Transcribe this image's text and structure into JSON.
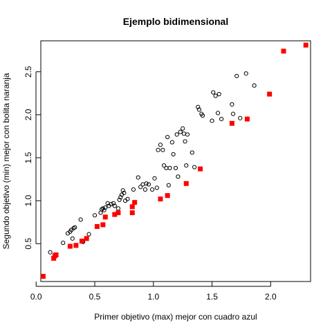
{
  "chart_data": {
    "type": "scatter",
    "title": "Ejemplo bidimensional",
    "xlabel": "Primer objetivo (max) mejor con cuadro azul",
    "ylabel": "Segundo objetivo (min) mejor con bolita naranja",
    "xlim": [
      0.04,
      2.34
    ],
    "ylim": [
      0.06,
      2.86
    ],
    "xticks": [
      "0.0",
      "0.5",
      "1.0",
      "1.5",
      "2.0"
    ],
    "yticks": [
      "0.5",
      "1.0",
      "1.5",
      "2.0",
      "2.5"
    ],
    "grid": false,
    "series": [
      {
        "marker": "open-circle",
        "color": "#000000",
        "points": [
          [
            0.12,
            0.4
          ],
          [
            0.23,
            0.51
          ],
          [
            0.27,
            0.62
          ],
          [
            0.29,
            0.64
          ],
          [
            0.3,
            0.66
          ],
          [
            0.32,
            0.68
          ],
          [
            0.33,
            0.69
          ],
          [
            0.31,
            0.56
          ],
          [
            0.38,
            0.78
          ],
          [
            0.4,
            0.52
          ],
          [
            0.45,
            0.61
          ],
          [
            0.5,
            0.83
          ],
          [
            0.55,
            0.86
          ],
          [
            0.56,
            0.9
          ],
          [
            0.57,
            0.91
          ],
          [
            0.58,
            0.89
          ],
          [
            0.59,
            0.92
          ],
          [
            0.61,
            0.97
          ],
          [
            0.62,
            0.94
          ],
          [
            0.64,
            0.96
          ],
          [
            0.66,
            0.97
          ],
          [
            0.67,
            0.94
          ],
          [
            0.7,
            0.91
          ],
          [
            0.71,
            1.01
          ],
          [
            0.72,
            1.04
          ],
          [
            0.73,
            1.07
          ],
          [
            0.74,
            1.12
          ],
          [
            0.75,
            1.09
          ],
          [
            0.76,
            1.0
          ],
          [
            0.78,
            1.02
          ],
          [
            0.83,
            1.13
          ],
          [
            0.87,
            1.27
          ],
          [
            0.89,
            1.16
          ],
          [
            0.91,
            1.19
          ],
          [
            0.93,
            1.13
          ],
          [
            0.94,
            1.2
          ],
          [
            0.96,
            1.19
          ],
          [
            0.99,
            1.13
          ],
          [
            1.01,
            1.26
          ],
          [
            1.03,
            1.15
          ],
          [
            1.04,
            1.59
          ],
          [
            1.06,
            1.65
          ],
          [
            1.08,
            1.59
          ],
          [
            1.09,
            1.41
          ],
          [
            1.11,
            1.38
          ],
          [
            1.12,
            1.74
          ],
          [
            1.13,
            1.18
          ],
          [
            1.14,
            1.38
          ],
          [
            1.16,
            1.68
          ],
          [
            1.17,
            1.54
          ],
          [
            1.19,
            1.38
          ],
          [
            1.2,
            1.77
          ],
          [
            1.21,
            1.28
          ],
          [
            1.23,
            1.8
          ],
          [
            1.25,
            1.84
          ],
          [
            1.26,
            1.78
          ],
          [
            1.27,
            1.69
          ],
          [
            1.28,
            1.41
          ],
          [
            1.29,
            1.77
          ],
          [
            1.33,
            1.56
          ],
          [
            1.35,
            1.39
          ],
          [
            1.38,
            2.09
          ],
          [
            1.39,
            2.06
          ],
          [
            1.41,
            2.01
          ],
          [
            1.42,
            1.99
          ],
          [
            1.5,
            1.93
          ],
          [
            1.51,
            2.26
          ],
          [
            1.53,
            2.22
          ],
          [
            1.55,
            2.02
          ],
          [
            1.56,
            2.24
          ],
          [
            1.58,
            1.95
          ],
          [
            1.67,
            2.12
          ],
          [
            1.68,
            2.01
          ],
          [
            1.71,
            2.45
          ],
          [
            1.74,
            1.96
          ],
          [
            1.79,
            2.48
          ],
          [
            1.86,
            2.34
          ]
        ]
      },
      {
        "marker": "filled-square",
        "color": "#ff0000",
        "points": [
          [
            0.06,
            0.12
          ],
          [
            0.15,
            0.33
          ],
          [
            0.16,
            0.36
          ],
          [
            0.17,
            0.37
          ],
          [
            0.29,
            0.47
          ],
          [
            0.34,
            0.48
          ],
          [
            0.39,
            0.53
          ],
          [
            0.43,
            0.56
          ],
          [
            0.52,
            0.7
          ],
          [
            0.57,
            0.72
          ],
          [
            0.59,
            0.81
          ],
          [
            0.67,
            0.84
          ],
          [
            0.7,
            0.86
          ],
          [
            0.82,
            0.86
          ],
          [
            0.82,
            0.93
          ],
          [
            0.84,
            0.98
          ],
          [
            1.06,
            1.02
          ],
          [
            1.12,
            1.06
          ],
          [
            1.28,
            1.2
          ],
          [
            1.4,
            1.37
          ],
          [
            1.67,
            1.9
          ],
          [
            1.8,
            1.95
          ],
          [
            1.99,
            2.24
          ],
          [
            2.11,
            2.74
          ],
          [
            2.3,
            2.81
          ]
        ]
      }
    ]
  }
}
